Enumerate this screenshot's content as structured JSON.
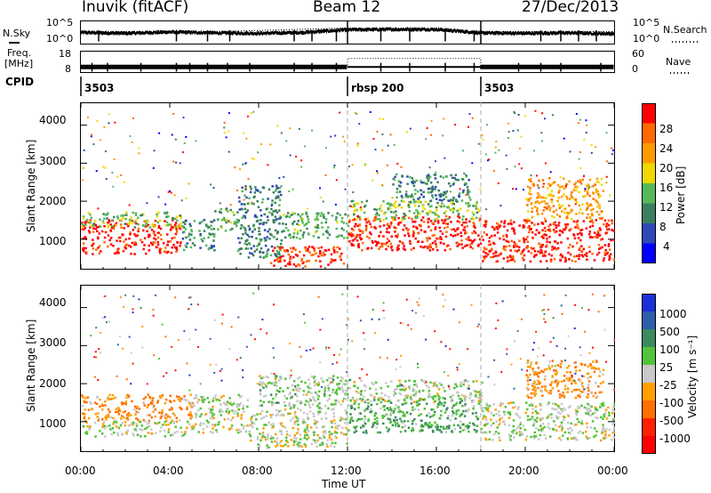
{
  "header": {
    "station": "Inuvik (fitACF)",
    "beam": "Beam 12",
    "date": "27/Dec/2013"
  },
  "noise_panel": {
    "left_label": "N.Sky",
    "left_ticks": [
      "10^5",
      "10^0"
    ],
    "right_ticks": [
      "10^5",
      "10^0"
    ],
    "right_label": "N.Search",
    "right_legend_line": "dotted"
  },
  "freq_panel": {
    "left_label_line1": "Freq.",
    "left_label_line2": "[MHz]",
    "left_ticks": [
      "18",
      "8"
    ],
    "right_ticks": [
      "60",
      "0"
    ],
    "right_label": "Nave",
    "right_legend_line": "dotted"
  },
  "cpid_panel": {
    "label": "CPID",
    "modes": [
      {
        "name": "3503",
        "start_hour": 0,
        "end_hour": 12
      },
      {
        "name": "rbsp 200",
        "start_hour": 12,
        "end_hour": 18
      },
      {
        "name": "3503",
        "start_hour": 18,
        "end_hour": 24
      }
    ]
  },
  "x_axis": {
    "label": "Time UT",
    "ticks": [
      "00:00",
      "04:00",
      "08:00",
      "12:00",
      "16:00",
      "20:00",
      "00:00"
    ]
  },
  "power_panel": {
    "ylabel": "Slant Range [km]",
    "yticks": [
      "4000",
      "3000",
      "2000",
      "1000"
    ],
    "colorbar_label": "Power [dB]",
    "colorbar_ticks": [
      "28",
      "24",
      "20",
      "16",
      "12",
      "8",
      "4"
    ],
    "colors": [
      "#0000ff",
      "#2d48b8",
      "#3b7f5e",
      "#56b85a",
      "#f0d800",
      "#ff9b00",
      "#ff6a00",
      "#ff0000"
    ]
  },
  "velocity_panel": {
    "ylabel": "Slant Range [km]",
    "yticks": [
      "4000",
      "3000",
      "2000",
      "1000"
    ],
    "colorbar_label": "Velocity [m s⁻¹]",
    "colorbar_ticks": [
      "1000",
      "500",
      "100",
      "25",
      "-25",
      "-100",
      "-500",
      "-1000"
    ],
    "colors": [
      "#1a30d8",
      "#2d5fae",
      "#3c8a5e",
      "#52c33a",
      "#c8c8c8",
      "#ffa000",
      "#ff7000",
      "#ff2000",
      "#ff0000"
    ]
  },
  "chart_data": [
    {
      "type": "line",
      "title": "N.Sky / N.Search",
      "x_unit": "hours UT",
      "xlim": [
        0,
        24
      ],
      "ylim_log10": [
        0,
        5
      ],
      "series": [
        {
          "name": "N.Sky",
          "x": [
            0,
            2,
            4,
            6,
            8,
            10,
            12,
            14,
            16,
            18,
            20,
            22,
            24
          ],
          "y_log10": [
            2.5,
            2.3,
            2.6,
            2.4,
            2.3,
            2.5,
            3.1,
            3.2,
            3.2,
            2.4,
            2.3,
            2.4,
            2.2
          ]
        },
        {
          "name": "N.Search",
          "x": [
            0,
            6,
            12,
            18,
            24
          ],
          "y_log10": [
            2.2,
            2.2,
            3.0,
            2.2,
            2.2
          ]
        }
      ]
    },
    {
      "type": "line",
      "title": "Freq. / Nave",
      "x_unit": "hours UT",
      "xlim": [
        0,
        24
      ],
      "ylim_freq_mhz": [
        8,
        18
      ],
      "ylim_nave": [
        0,
        60
      ],
      "series": [
        {
          "name": "Freq. [MHz]",
          "x": [
            0,
            12,
            12,
            18,
            18,
            24
          ],
          "y": [
            10.5,
            10.5,
            10.5,
            10.5,
            10.5,
            10.5
          ]
        },
        {
          "name": "Nave",
          "x": [
            0,
            12,
            12,
            18,
            18,
            24
          ],
          "y": [
            20,
            20,
            40,
            40,
            20,
            20
          ]
        }
      ]
    },
    {
      "type": "heatmap",
      "title": "Power [dB]",
      "x_unit": "hours UT",
      "xlim": [
        0,
        24
      ],
      "ylabel": "Slant Range [km]",
      "ylim": [
        200,
        4600
      ],
      "zlim": [
        0,
        30
      ],
      "blobs": [
        {
          "t0": 0.0,
          "t1": 4.5,
          "r0": 600,
          "r1": 1500,
          "z": 28
        },
        {
          "t0": 0.0,
          "t1": 4.5,
          "r0": 1300,
          "r1": 1700,
          "z": 14
        },
        {
          "t0": 4.5,
          "t1": 6.0,
          "r0": 700,
          "r1": 1500,
          "z": 10
        },
        {
          "t0": 6.0,
          "t1": 7.0,
          "r0": 1200,
          "r1": 1800,
          "z": 12
        },
        {
          "t0": 7.0,
          "t1": 9.0,
          "r0": 500,
          "r1": 2400,
          "z": 9
        },
        {
          "t0": 8.5,
          "t1": 11.8,
          "r0": 250,
          "r1": 800,
          "z": 27
        },
        {
          "t0": 9.0,
          "t1": 12.0,
          "r0": 1000,
          "r1": 1700,
          "z": 12
        },
        {
          "t0": 12.0,
          "t1": 18.0,
          "r0": 700,
          "r1": 1600,
          "z": 28
        },
        {
          "t0": 12.0,
          "t1": 18.0,
          "r0": 1500,
          "r1": 2000,
          "z": 14
        },
        {
          "t0": 14.0,
          "t1": 17.5,
          "r0": 2000,
          "r1": 2700,
          "z": 10
        },
        {
          "t0": 18.0,
          "t1": 24.0,
          "r0": 400,
          "r1": 1500,
          "z": 28
        },
        {
          "t0": 20.0,
          "t1": 23.5,
          "r0": 1500,
          "r1": 2600,
          "z": 21
        }
      ]
    },
    {
      "type": "heatmap",
      "title": "Velocity [m s⁻¹]",
      "x_unit": "hours UT",
      "xlim": [
        0,
        24
      ],
      "ylabel": "Slant Range [km]",
      "ylim": [
        200,
        4600
      ],
      "zlim": [
        -1000,
        1000
      ],
      "blobs": [
        {
          "t0": 0.0,
          "t1": 5.0,
          "r0": 1000,
          "r1": 1700,
          "z": -300
        },
        {
          "t0": 0.0,
          "t1": 5.0,
          "r0": 600,
          "r1": 1000,
          "z": 60
        },
        {
          "t0": 5.0,
          "t1": 7.5,
          "r0": 700,
          "r1": 1700,
          "z": 50
        },
        {
          "t0": 7.5,
          "t1": 12.0,
          "r0": 300,
          "r1": 1200,
          "z": 30
        },
        {
          "t0": 8.0,
          "t1": 12.0,
          "r0": 1200,
          "r1": 2200,
          "z": 120
        },
        {
          "t0": 12.0,
          "t1": 18.0,
          "r0": 700,
          "r1": 1600,
          "z": 300
        },
        {
          "t0": 12.0,
          "t1": 18.0,
          "r0": 1500,
          "r1": 2100,
          "z": 80
        },
        {
          "t0": 18.0,
          "t1": 24.0,
          "r0": 500,
          "r1": 1500,
          "z": 60
        },
        {
          "t0": 20.0,
          "t1": 23.5,
          "r0": 1600,
          "r1": 2600,
          "z": -300
        }
      ]
    }
  ]
}
